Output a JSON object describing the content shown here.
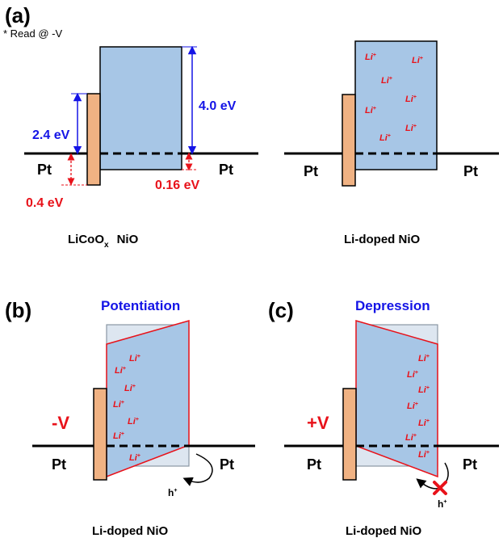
{
  "panel_a": {
    "label": "(a)",
    "note": "* Read @ -V",
    "energy_big": "4.0 eV",
    "energy_mid": "2.4 eV",
    "energy_left_red": "0.4 eV",
    "energy_right_red": "0.16 eV",
    "left_device": {
      "pt_left": "Pt",
      "pt_right": "Pt",
      "caption_main": "LiCoO",
      "caption_sub": "x",
      "caption_tail": "NiO"
    },
    "right_device": {
      "pt_left": "Pt",
      "pt_right": "Pt",
      "caption": "Li-doped NiO"
    }
  },
  "panel_b": {
    "label": "(b)",
    "title": "Potentiation",
    "voltage": "-V",
    "pt_left": "Pt",
    "pt_right": "Pt",
    "carrier": "h",
    "caption": "Li-doped NiO"
  },
  "panel_c": {
    "label": "(c)",
    "title": "Depression",
    "voltage": "+V",
    "pt_left": "Pt",
    "pt_right": "Pt",
    "carrier": "h",
    "caption": "Li-doped NiO"
  },
  "ion": {
    "symbol": "Li",
    "charge": "+"
  },
  "colors": {
    "nio_fill": "#a7c6e6",
    "electrode_fill": "#f0b283",
    "blue_text": "#1414e6",
    "red_text": "#e8121a"
  }
}
